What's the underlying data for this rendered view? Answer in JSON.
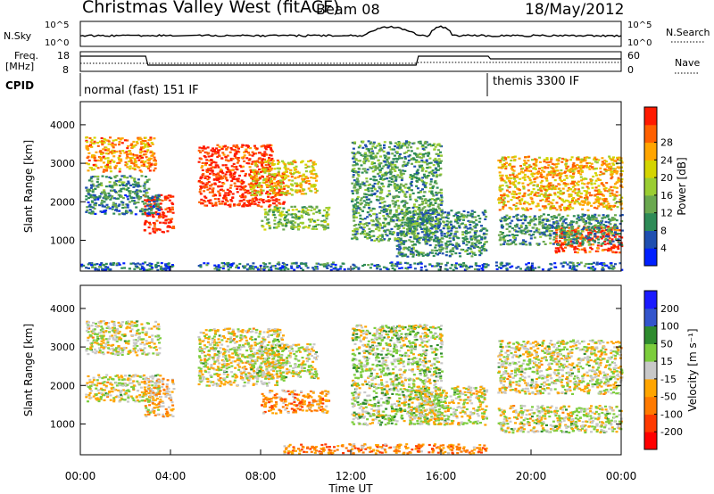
{
  "header": {
    "station": "Christmas Valley West (fitACF)",
    "beam": "Beam 08",
    "date": "18/May/2012"
  },
  "summary": {
    "nsky_label": "N.Sky",
    "nsky_ticks": [
      "10^5",
      "10^0"
    ],
    "nsearch_label": "N.Search",
    "nsearch_ticks": [
      "10^5",
      "10^0"
    ],
    "freq_label": "Freq.",
    "freq_unit": "[MHz]",
    "freq_ticks": [
      "18",
      "8"
    ],
    "nave_label": "Nave",
    "nave_ticks": [
      "60",
      "0"
    ],
    "cpid_label": "CPID",
    "cpid_modes": [
      "normal (fast) 151 IF",
      "themis 3300 IF"
    ]
  },
  "chart_data": [
    {
      "type": "heatmap",
      "name": "power",
      "ylabel": "Slant Range [km]",
      "xlabel": "Time UT",
      "x_ticks": [
        "00:00",
        "04:00",
        "08:00",
        "12:00",
        "16:00",
        "20:00",
        "00:00"
      ],
      "ylim": [
        200,
        4600
      ],
      "y_ticks": [
        "1000",
        "2000",
        "3000",
        "4000"
      ],
      "colorbar": {
        "label": "Power [dB]",
        "ticks": [
          "4",
          "8",
          "12",
          "16",
          "20",
          "24",
          "28"
        ],
        "colors": [
          "#0020ff",
          "#1f4fb0",
          "#2e8b57",
          "#6aa84f",
          "#9acd32",
          "#d4d400",
          "#ffa500",
          "#ff6000",
          "#ff1a00"
        ]
      },
      "regions": [
        {
          "t": [
            0.2,
            3.3
          ],
          "r": [
            2800,
            3700
          ],
          "level": 0.75
        },
        {
          "t": [
            0.2,
            3.0
          ],
          "r": [
            2100,
            2700
          ],
          "level": 0.3
        },
        {
          "t": [
            2.8,
            4.2
          ],
          "r": [
            1200,
            2200
          ],
          "level": 0.95
        },
        {
          "t": [
            0.2,
            3.5
          ],
          "r": [
            1700,
            2200
          ],
          "level": 0.25
        },
        {
          "t": [
            5.2,
            8.5
          ],
          "r": [
            2800,
            3500
          ],
          "level": 0.9
        },
        {
          "t": [
            5.2,
            9.0
          ],
          "r": [
            1900,
            2800
          ],
          "level": 0.95
        },
        {
          "t": [
            7.5,
            10.5
          ],
          "r": [
            2200,
            3100
          ],
          "level": 0.65
        },
        {
          "t": [
            8.0,
            11.0
          ],
          "r": [
            1300,
            1900
          ],
          "level": 0.45
        },
        {
          "t": [
            12.0,
            16.0
          ],
          "r": [
            1000,
            3600
          ],
          "level": 0.35
        },
        {
          "t": [
            14.0,
            18.0
          ],
          "r": [
            600,
            1800
          ],
          "level": 0.3
        },
        {
          "t": [
            18.5,
            24.0
          ],
          "r": [
            1800,
            3200
          ],
          "level": 0.7
        },
        {
          "t": [
            21.0,
            24.0
          ],
          "r": [
            700,
            1400
          ],
          "level": 0.9
        },
        {
          "t": [
            18.5,
            24.0
          ],
          "r": [
            900,
            1700
          ],
          "level": 0.3
        },
        {
          "t": [
            0.0,
            24.0
          ],
          "r": [
            250,
            450
          ],
          "level": 0.2
        }
      ]
    },
    {
      "type": "heatmap",
      "name": "velocity",
      "ylabel": "Slant Range [km]",
      "xlabel": "Time UT",
      "x_ticks": [
        "00:00",
        "04:00",
        "08:00",
        "12:00",
        "16:00",
        "20:00",
        "00:00"
      ],
      "ylim": [
        200,
        4600
      ],
      "y_ticks": [
        "1000",
        "2000",
        "3000",
        "4000"
      ],
      "colorbar": {
        "label": "Velocity [m s⁻¹]",
        "ticks": [
          "200",
          "100",
          "50",
          "15",
          "-15",
          "-50",
          "-100",
          "-200"
        ],
        "colors": [
          "#1a1aff",
          "#3355cc",
          "#2e8b2e",
          "#7ccd3c",
          "#c8c8c8",
          "#ffa500",
          "#ff7a00",
          "#ff3a00",
          "#ff0000"
        ]
      },
      "regions": [
        {
          "t": [
            0.2,
            3.5
          ],
          "r": [
            2800,
            3700
          ],
          "level": 0.5
        },
        {
          "t": [
            0.2,
            3.5
          ],
          "r": [
            1600,
            2300
          ],
          "level": 0.5
        },
        {
          "t": [
            2.8,
            4.2
          ],
          "r": [
            1200,
            2200
          ],
          "level": 0.6
        },
        {
          "t": [
            5.2,
            9.0
          ],
          "r": [
            2000,
            3500
          ],
          "level": 0.5
        },
        {
          "t": [
            7.5,
            10.5
          ],
          "r": [
            2200,
            3100
          ],
          "level": 0.5
        },
        {
          "t": [
            8.0,
            11.0
          ],
          "r": [
            1300,
            1900
          ],
          "level": 0.68
        },
        {
          "t": [
            12.0,
            16.0
          ],
          "r": [
            1000,
            3600
          ],
          "level": 0.45
        },
        {
          "t": [
            14.5,
            18.0
          ],
          "r": [
            1000,
            2000
          ],
          "level": 0.5
        },
        {
          "t": [
            18.5,
            24.0
          ],
          "r": [
            1800,
            3200
          ],
          "level": 0.5
        },
        {
          "t": [
            18.5,
            24.0
          ],
          "r": [
            800,
            1500
          ],
          "level": 0.5
        },
        {
          "t": [
            9.0,
            18.0
          ],
          "r": [
            250,
            500
          ],
          "level": 0.7
        }
      ]
    }
  ]
}
